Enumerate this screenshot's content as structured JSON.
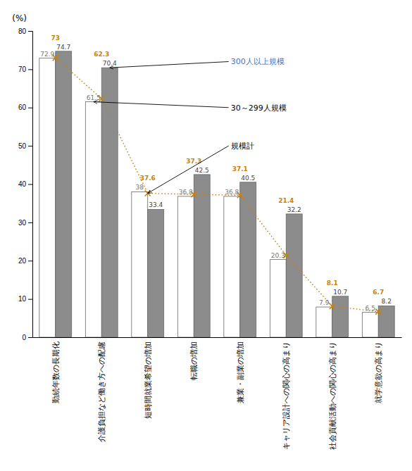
{
  "chart_data": {
    "type": "bar",
    "ylabel": "(%)",
    "categories": [
      "勤続年数の長期化",
      "介護負担など働き方への配慮",
      "短時間就業希望の増加",
      "転職の増加",
      "兼業・副業の増加",
      "キャリア設計への関心の高まり",
      "社会貢献活動への関心の高まり",
      "就学意欲の高まり"
    ],
    "series": [
      {
        "type": "bar",
        "color": "#ffffff",
        "values": [
          72.9,
          61.5,
          38.0,
          36.8,
          36.8,
          20.3,
          7.9,
          6.5
        ]
      },
      {
        "type": "bar",
        "color": "#8c8c8c",
        "values": [
          74.7,
          70.4,
          33.4,
          42.5,
          40.5,
          32.2,
          10.7,
          8.2
        ]
      },
      {
        "type": "line",
        "color": "#c8820a",
        "line_style": "dotted",
        "marker": "x",
        "values": [
          73.0,
          62.3,
          37.6,
          37.3,
          37.1,
          21.4,
          8.1,
          6.7
        ]
      }
    ],
    "annotations": [
      {
        "text": "300人以上規模",
        "color": "#4472c4"
      },
      {
        "text": "30～299人規模",
        "color": "#000000"
      },
      {
        "text": "規模計",
        "color": "#000000"
      }
    ],
    "ylim": [
      0,
      80
    ],
    "yticks": [
      0,
      10,
      20,
      30,
      40,
      50,
      60,
      70,
      80
    ],
    "data_labels": true,
    "grid": false
  }
}
